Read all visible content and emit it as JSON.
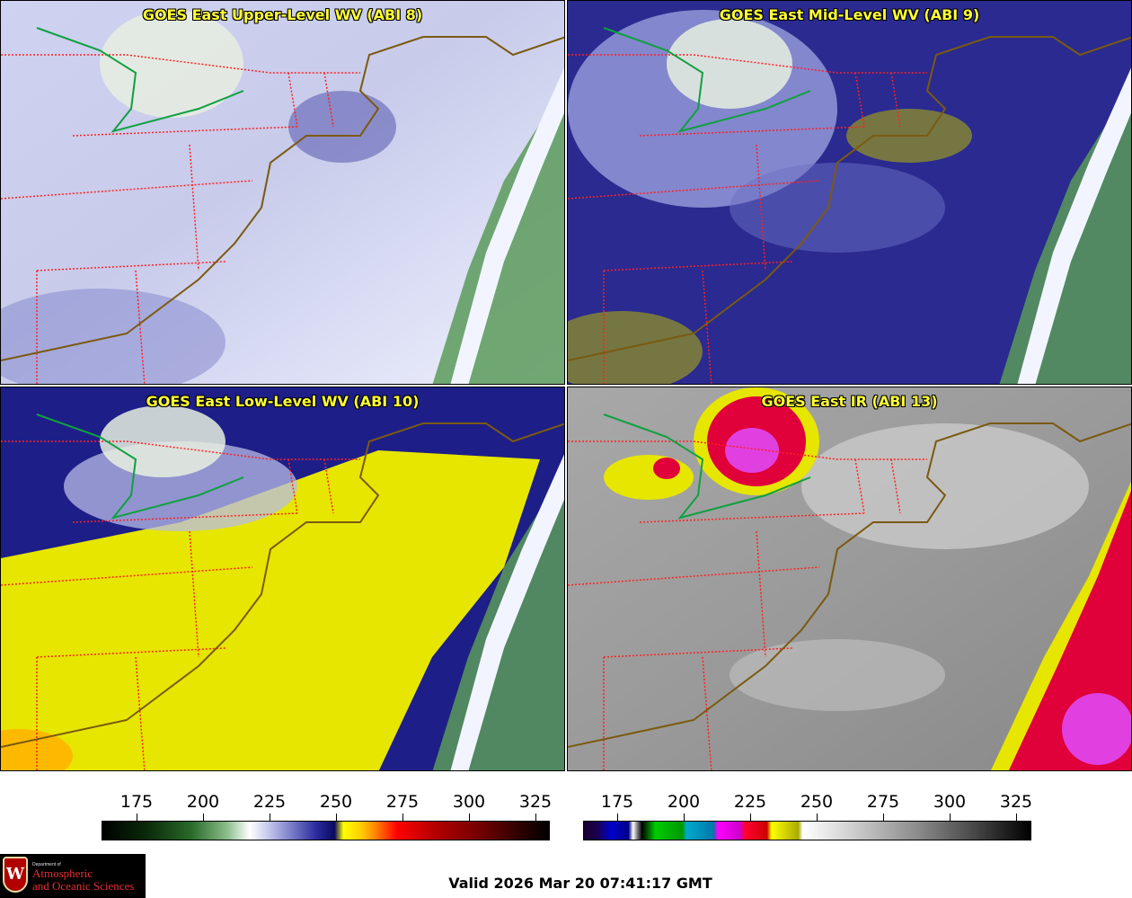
{
  "panels": [
    {
      "title": "GOES East Upper-Level WV (ABI 8)",
      "style": "wv-upper"
    },
    {
      "title": "GOES East Mid-Level WV (ABI 9)",
      "style": "wv-mid"
    },
    {
      "title": "GOES East Low-Level WV (ABI 10)",
      "style": "wv-low"
    },
    {
      "title": "GOES East IR (ABI 13)",
      "style": "ir"
    }
  ],
  "colorbars": {
    "wv": {
      "ticks": [
        "175",
        "200",
        "225",
        "250",
        "275",
        "300",
        "325"
      ]
    },
    "ir": {
      "ticks": [
        "175",
        "200",
        "225",
        "250",
        "275",
        "300",
        "325"
      ]
    }
  },
  "logo": {
    "letter": "W",
    "department_prefix": "Department of",
    "line1": "Atmospheric",
    "line2": "and Oceanic Sciences"
  },
  "valid_time": "Valid 2026 Mar 20 07:41:17 GMT",
  "colors": {
    "title_text": "#ffff33",
    "state_borders": "#ff2020",
    "coastline": "#7a5a10",
    "great_lakes_outline": "#10a040"
  }
}
